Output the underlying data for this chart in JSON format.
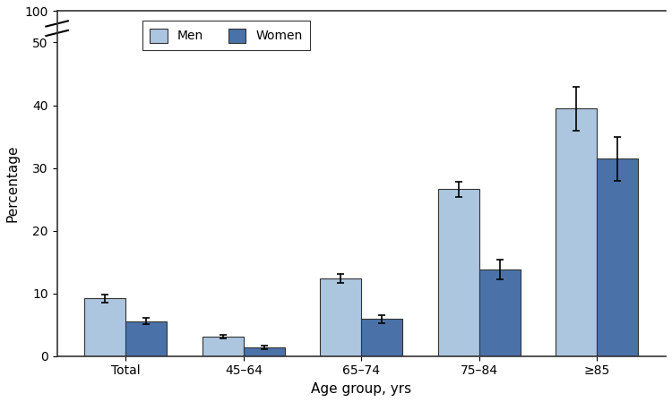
{
  "categories": [
    "Total",
    "45–64",
    "65–74",
    "75–84",
    "≥85"
  ],
  "men_values": [
    9.2,
    3.1,
    12.4,
    26.6,
    39.5
  ],
  "women_values": [
    5.6,
    1.4,
    5.9,
    13.8,
    31.5
  ],
  "men_errors_lower": [
    0.6,
    0.3,
    0.7,
    1.2,
    3.5
  ],
  "men_errors_upper": [
    0.6,
    0.3,
    0.7,
    1.2,
    3.5
  ],
  "women_errors_lower": [
    0.5,
    0.3,
    0.7,
    1.6,
    3.5
  ],
  "women_errors_upper": [
    0.5,
    0.3,
    0.7,
    1.6,
    3.5
  ],
  "men_color": "#adc6e0",
  "women_color": "#4a72a8",
  "bar_edge_color": "#333333",
  "ylabel": "Percentage",
  "xlabel": "Age group, yrs",
  "legend_labels": [
    "Men",
    "Women"
  ],
  "bar_width": 0.35,
  "axis_line_color": "#333333"
}
